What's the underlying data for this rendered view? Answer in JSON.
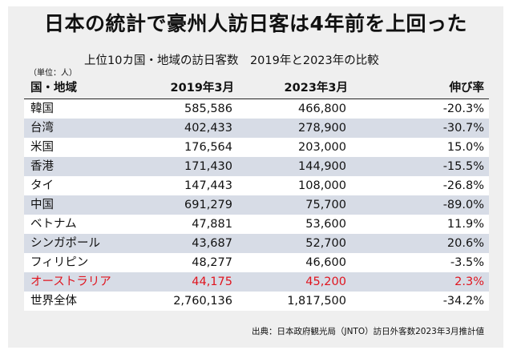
{
  "title": "日本の統計で豪州人訪日客は4年前を上回った",
  "subtitle": "上位10カ国・地域の訪日客数　2019年と2023年の比較",
  "unit_note": "（単位：人）",
  "source": "出典：日本政府観光局（JNTO）訪日外客数2023年3月推計値",
  "colors": {
    "panel_background": "#efefef",
    "band": "#d7dce6",
    "highlight": "#e0141e",
    "text": "#111111"
  },
  "chart_data": {
    "type": "table",
    "columns": [
      "国・地域",
      "2019年3月",
      "2023年3月",
      "伸び率"
    ],
    "rows": [
      {
        "name": "韓国",
        "y2019": "585,586",
        "y2023": "466,800",
        "rate": "-20.3%"
      },
      {
        "name": "台湾",
        "y2019": "402,433",
        "y2023": "278,900",
        "rate": "-30.7%"
      },
      {
        "name": "米国",
        "y2019": "176,564",
        "y2023": "203,000",
        "rate": "15.0%"
      },
      {
        "name": "香港",
        "y2019": "171,430",
        "y2023": "144,900",
        "rate": "-15.5%"
      },
      {
        "name": "タイ",
        "y2019": "147,443",
        "y2023": "108,000",
        "rate": "-26.8%"
      },
      {
        "name": "中国",
        "y2019": "691,279",
        "y2023": "75,700",
        "rate": "-89.0%"
      },
      {
        "name": "ベトナム",
        "y2019": "47,881",
        "y2023": "53,600",
        "rate": "11.9%"
      },
      {
        "name": "シンガポール",
        "y2019": "43,687",
        "y2023": "52,700",
        "rate": "20.6%"
      },
      {
        "name": "フィリピン",
        "y2019": "48,277",
        "y2023": "46,600",
        "rate": "-3.5%"
      },
      {
        "name": "オーストラリア",
        "y2019": "44,175",
        "y2023": "45,200",
        "rate": "2.3%",
        "highlight": true
      },
      {
        "name": "世界全体",
        "y2019": "2,760,136",
        "y2023": "1,817,500",
        "rate": "-34.2%",
        "total": true
      }
    ]
  }
}
